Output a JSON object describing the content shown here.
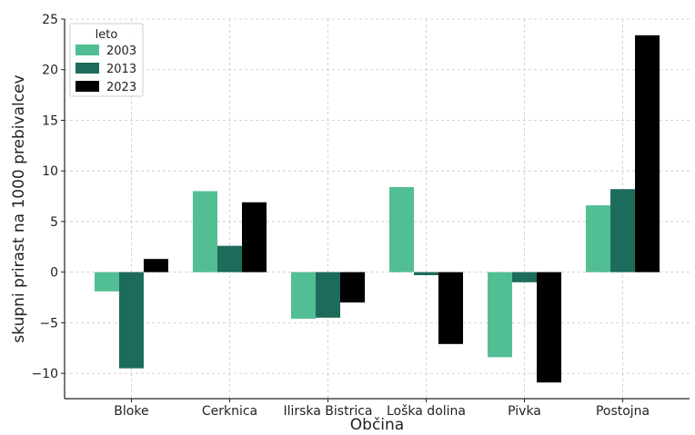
{
  "chart_data": {
    "type": "bar",
    "xlabel": "Občina",
    "ylabel": "skupni prirast na 1000 prebivalcev",
    "categories": [
      "Bloke",
      "Cerknica",
      "Ilirska Bistrica",
      "Loška dolina",
      "Pivka",
      "Postojna"
    ],
    "ylim": [
      -12.5,
      25
    ],
    "yticks": [
      -10,
      -5,
      0,
      5,
      10,
      15,
      20,
      25
    ],
    "ytick_labels": [
      "−10",
      "−5",
      "0",
      "5",
      "10",
      "15",
      "20",
      "25"
    ],
    "grid": true,
    "legend": {
      "title": "leto",
      "placement": "top-left"
    },
    "series": [
      {
        "name": "2003",
        "color": "#52be93",
        "values": [
          -1.9,
          8.0,
          -4.6,
          8.4,
          -8.4,
          6.6
        ]
      },
      {
        "name": "2013",
        "color": "#1d6b5a",
        "values": [
          -9.5,
          2.6,
          -4.5,
          -0.3,
          -1.0,
          8.2
        ]
      },
      {
        "name": "2023",
        "color": "#000000",
        "values": [
          1.3,
          6.9,
          -3.0,
          -7.1,
          -10.9,
          23.4
        ]
      }
    ]
  }
}
